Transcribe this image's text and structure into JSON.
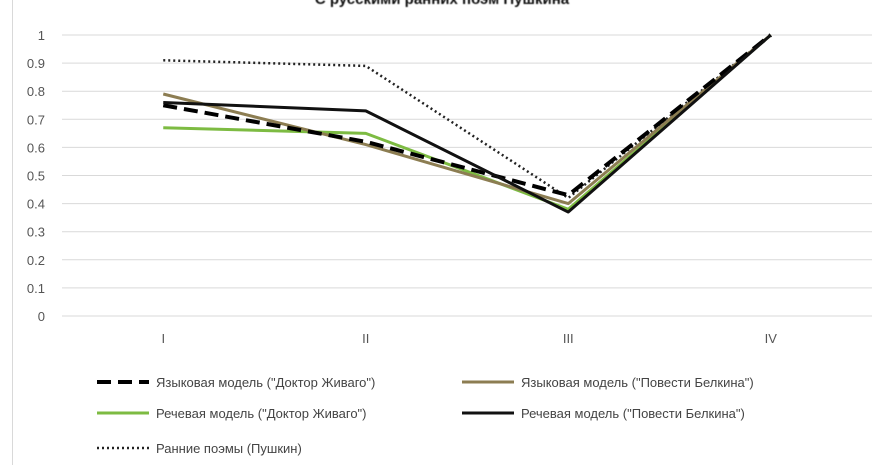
{
  "chart_data": {
    "type": "line",
    "title": "С русскими ранних поэм Пушкина",
    "categories": [
      "I",
      "II",
      "III",
      "IV"
    ],
    "ylim": [
      0,
      1
    ],
    "yticks": [
      "0",
      "0.1",
      "0.2",
      "0.3",
      "0.4",
      "0.5",
      "0.6",
      "0.7",
      "0.8",
      "0.9",
      "1"
    ],
    "grid": true,
    "legend_position": "bottom",
    "series": [
      {
        "name": "Языковая модель (\"Доктор Живаго\")",
        "values": [
          0.75,
          0.62,
          0.43,
          1.0
        ],
        "color": "#000000",
        "style": "dashed"
      },
      {
        "name": "Языковая модель (\"Повести Белкина\")",
        "values": [
          0.79,
          0.61,
          0.4,
          1.0
        ],
        "color": "#8c7d52",
        "style": "solid"
      },
      {
        "name": "Речевая модель (\"Доктор Живаго\")",
        "values": [
          0.67,
          0.65,
          0.38,
          1.0
        ],
        "color": "#7dbb42",
        "style": "solid"
      },
      {
        "name": "Речевая модель (\"Повести Белкина\")",
        "values": [
          0.76,
          0.73,
          0.37,
          1.0
        ],
        "color": "#111111",
        "style": "solid"
      },
      {
        "name": "Ранние поэмы (Пушкин)",
        "values": [
          0.91,
          0.89,
          0.42,
          1.0
        ],
        "color": "#222222",
        "style": "dotted"
      }
    ]
  }
}
